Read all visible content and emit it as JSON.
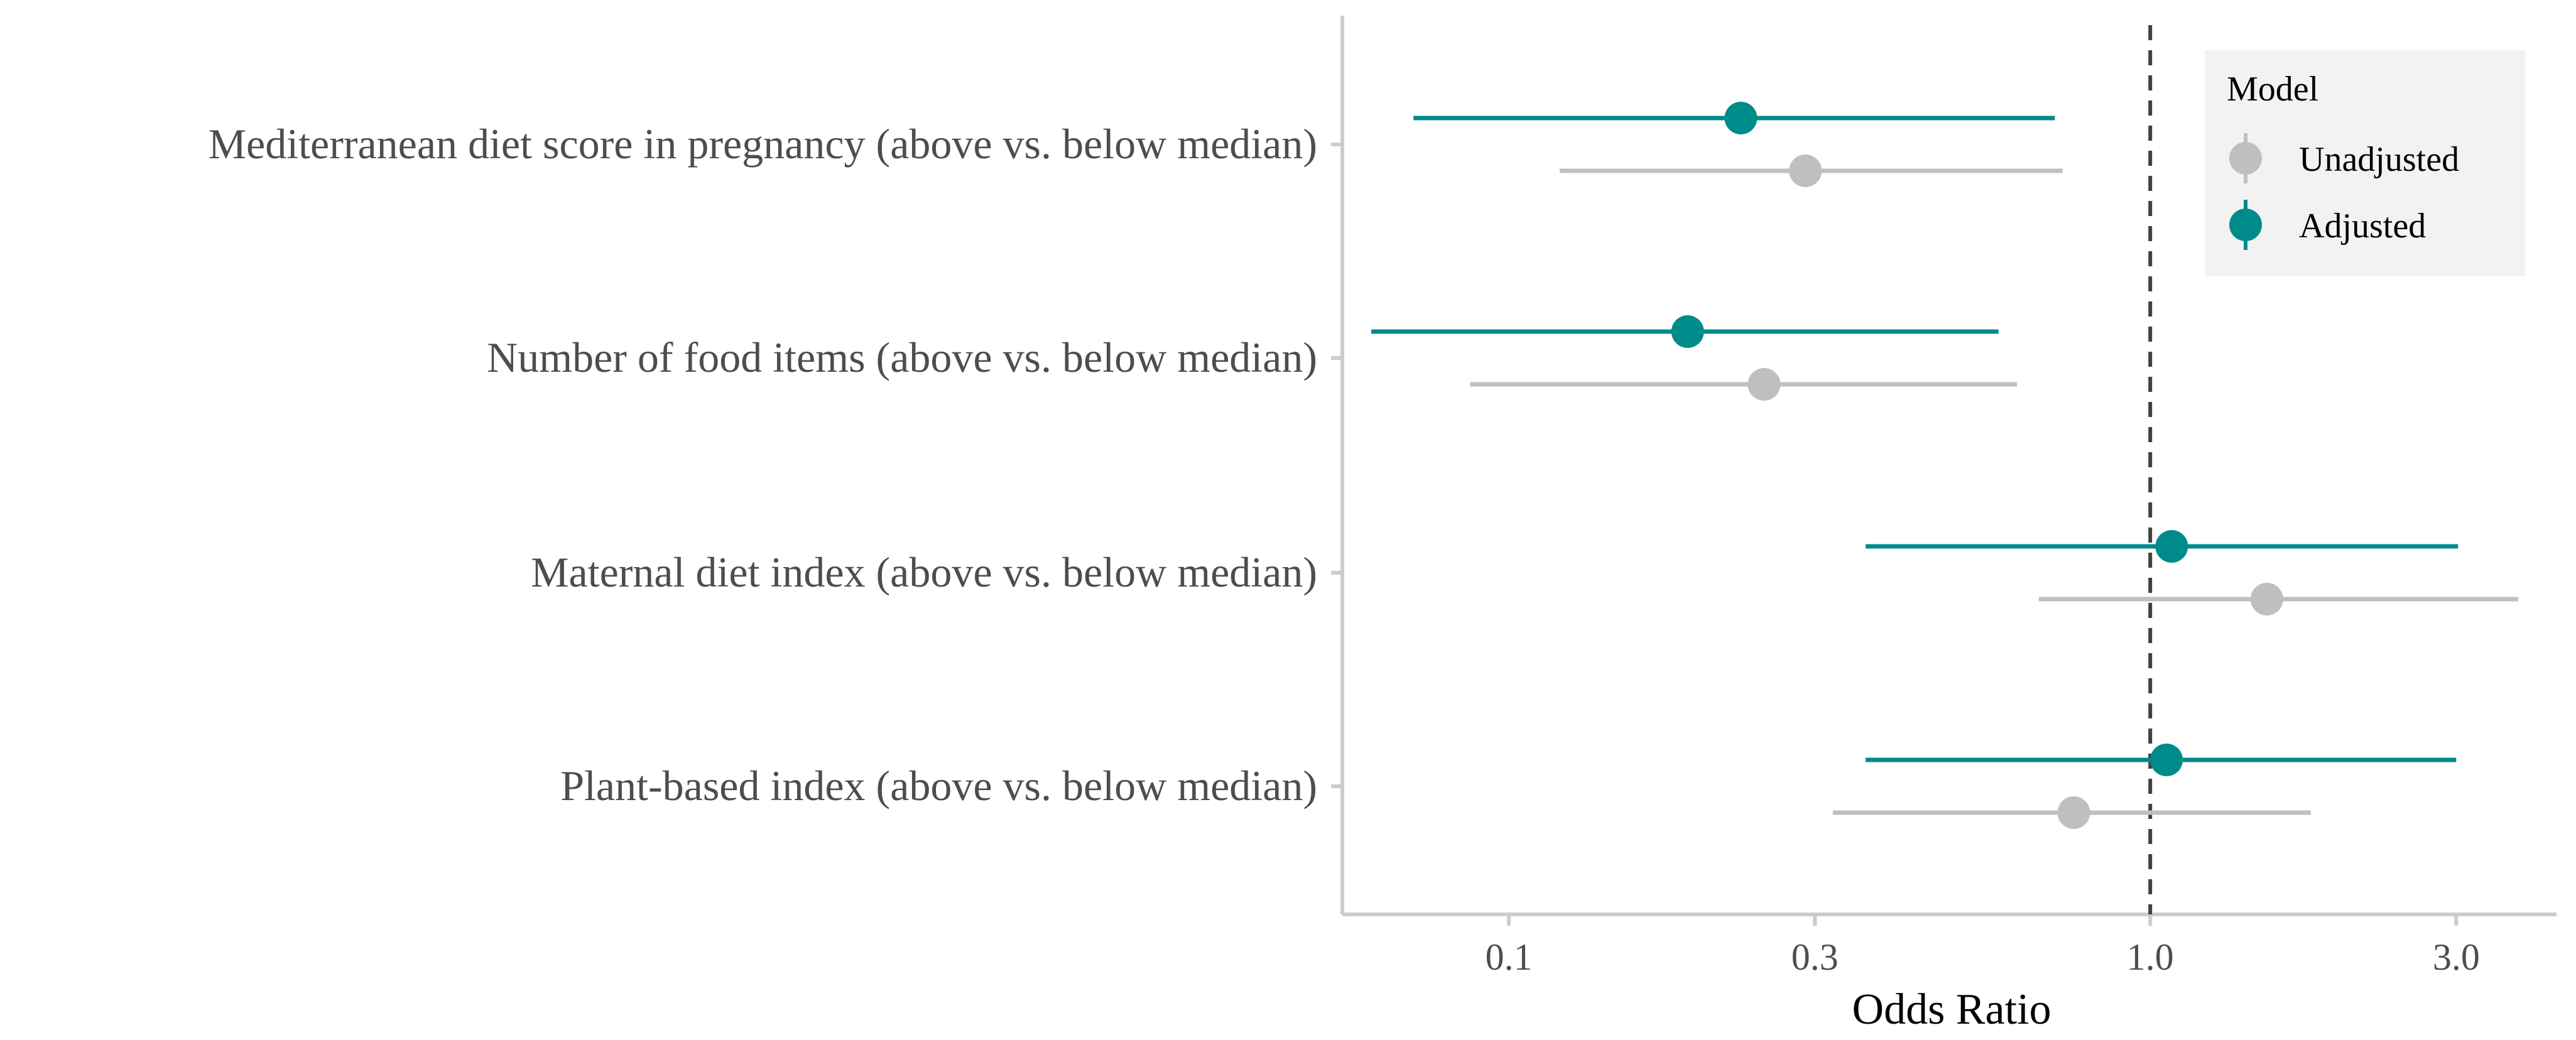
{
  "chart_data": {
    "type": "scatter",
    "subtype": "forest-plot",
    "xscale": "log",
    "xlabel": "Odds Ratio",
    "xlim": [
      0.055,
      4.3
    ],
    "xticks": [
      0.1,
      0.3,
      1.0,
      3.0
    ],
    "xtick_labels": [
      "0.1",
      "0.3",
      "1.0",
      "3.0"
    ],
    "reference_line": 1.0,
    "grid": false,
    "legend": {
      "title": "Model",
      "position": "top-right"
    },
    "categories": [
      "Mediterranean diet score in pregnancy (above vs. below median)",
      "Number of food items (above vs. below median)",
      "Maternal diet index (above vs. below median)",
      "Plant-based index (above vs. below median)"
    ],
    "series": [
      {
        "name": "Unadjusted",
        "color": "#bfbfbf",
        "estimates": [
          0.29,
          0.25,
          1.52,
          0.76
        ],
        "ci_low": [
          0.12,
          0.087,
          0.67,
          0.32
        ],
        "ci_high": [
          0.73,
          0.62,
          3.75,
          1.78
        ]
      },
      {
        "name": "Adjusted",
        "color": "#008b8b",
        "estimates": [
          0.23,
          0.19,
          1.08,
          1.06
        ],
        "ci_low": [
          0.071,
          0.061,
          0.36,
          0.36
        ],
        "ci_high": [
          0.71,
          0.58,
          3.02,
          3.0
        ]
      }
    ]
  }
}
